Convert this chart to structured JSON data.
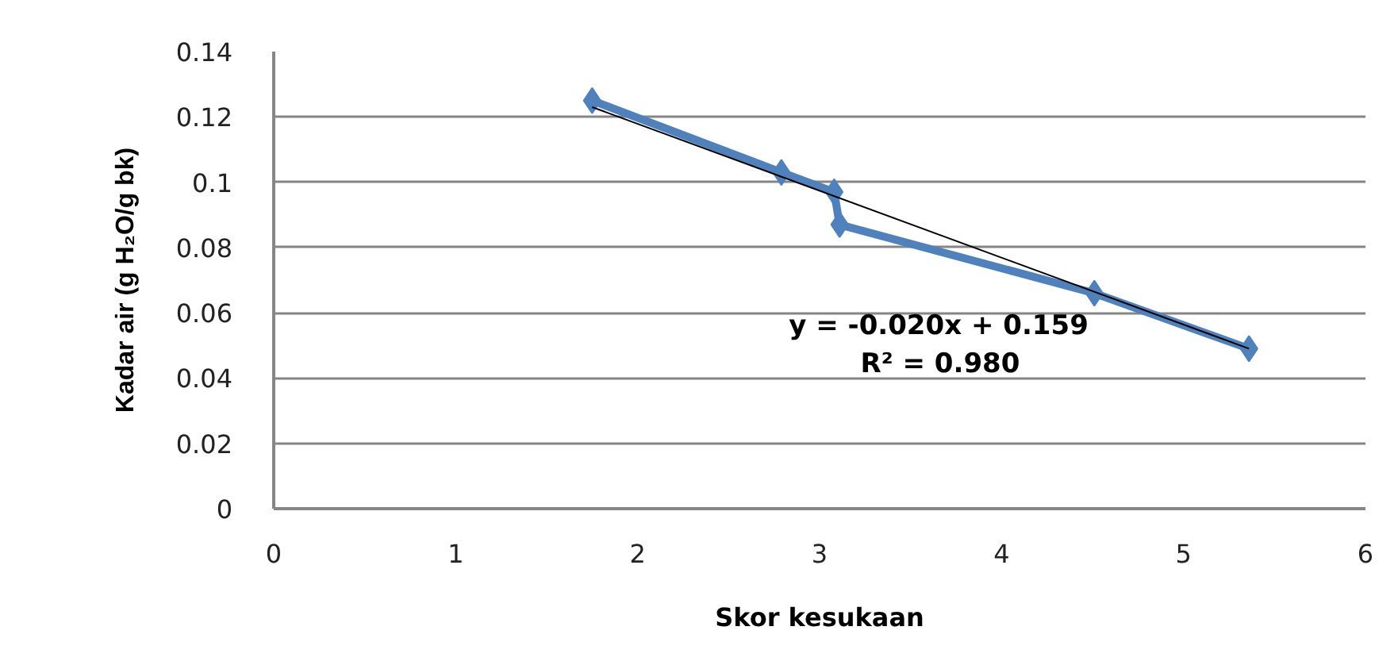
{
  "chart_data": {
    "type": "line",
    "xlabel": "Skor kesukaan",
    "ylabel": "Kadar air (g H₂O/g bk)",
    "xlim": [
      0,
      6
    ],
    "ylim": [
      0,
      0.14
    ],
    "xticks": [
      0,
      1,
      2,
      3,
      4,
      5,
      6
    ],
    "yticks": [
      0,
      0.02,
      0.04,
      0.06,
      0.08,
      0.1,
      0.12,
      0.14
    ],
    "grid": "y",
    "marker": "diamond",
    "series": [
      {
        "color": "#4f81bd",
        "x": [
          1.75,
          2.79,
          3.08,
          3.11,
          4.51,
          5.36
        ],
        "values": [
          0.125,
          0.103,
          0.097,
          0.087,
          0.066,
          0.049
        ]
      },
      {
        "color": "#000000",
        "marker": "none",
        "x": [
          1.75,
          5.36
        ],
        "values": [
          0.123,
          0.049
        ]
      }
    ],
    "annotations": [
      "y = -0.020x + 0.159",
      "R² = 0.980"
    ]
  }
}
